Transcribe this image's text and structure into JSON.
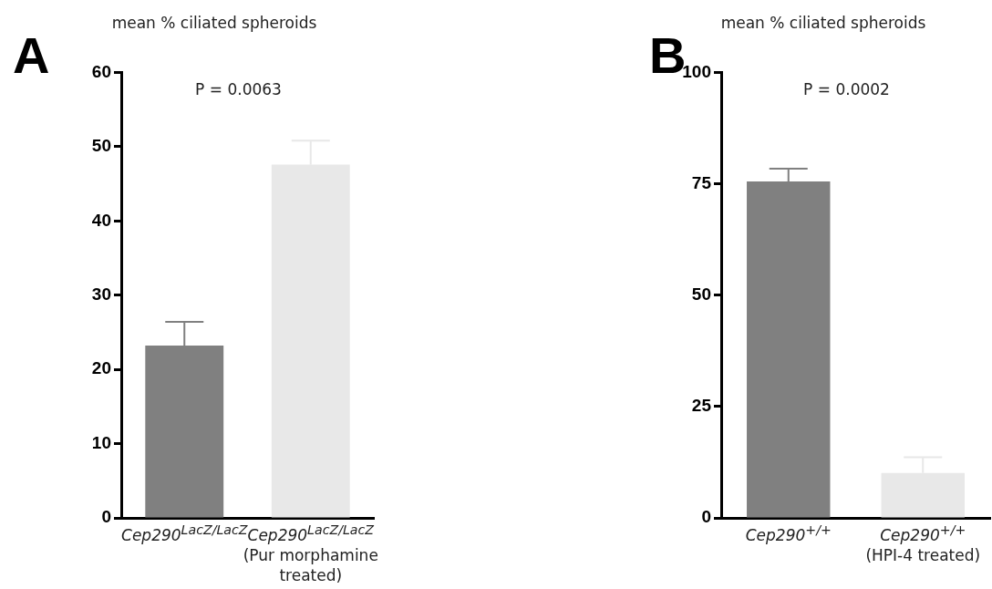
{
  "chart_data": [
    {
      "type": "bar",
      "title": "mean % ciliated spheroids",
      "categories": [
        "Cep290$^{LacZ/LacZ}$",
        "Cep290$^{LacZ/LacZ}$\n(Pur morphamine treated)"
      ],
      "values": [
        23.2,
        47.6
      ],
      "errors": [
        [
          23.2,
          26.4
        ],
        [
          47.6,
          50.8
        ]
      ],
      "colors": [
        "#808080",
        "#e8e8e8"
      ],
      "ylim": [
        0,
        60
      ],
      "yticks": [
        0,
        10,
        20,
        30,
        40,
        50,
        60
      ],
      "grid": false,
      "legend": false,
      "annotations": [
        "A",
        "P = 0.0063"
      ]
    },
    {
      "type": "bar",
      "title": "mean % ciliated spheroids",
      "categories": [
        "Cep290$^{+/+}$",
        "Cep290$^{+/+}$\n(HPI-4 treated)"
      ],
      "values": [
        75.5,
        10.1
      ],
      "errors": [
        [
          75.5,
          78.4
        ],
        [
          10.1,
          13.6
        ]
      ],
      "colors": [
        "#808080",
        "#e8e8e8"
      ],
      "ylim": [
        0,
        100
      ],
      "yticks": [
        0,
        25,
        50,
        75,
        100
      ],
      "grid": false,
      "legend": false,
      "annotations": [
        "B",
        "P = 0.0002"
      ]
    }
  ]
}
